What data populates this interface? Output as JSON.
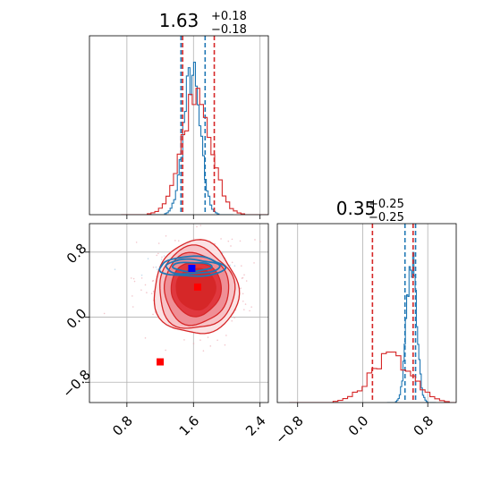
{
  "chart_data": {
    "type": "corner",
    "grid": true,
    "colors": {
      "series_a": "#1f77b4",
      "series_b": "#d62728",
      "marker_a": "#0000ff",
      "marker_b": "#ff0000"
    },
    "panels": [
      {
        "id": "hist_x",
        "type": "histogram",
        "title": {
          "value": "1.63",
          "plus": "+0.18",
          "minus": "−0.18"
        },
        "xlim": [
          0.35,
          2.5
        ],
        "xticks": [
          0.8,
          1.6,
          2.4
        ],
        "series": [
          {
            "color": "#1f77b4",
            "quantiles": [
              1.45,
              1.74
            ],
            "peak": 1.58,
            "sigma": 0.1,
            "peak_height": 0.78
          },
          {
            "color": "#d62728",
            "quantiles": [
              1.47,
              1.85
            ],
            "peak": 1.63,
            "sigma": 0.18,
            "peak_height": 0.63
          }
        ]
      },
      {
        "id": "scatter_xy",
        "type": "contour",
        "xlim": [
          0.35,
          2.5
        ],
        "ylim": [
          -1.05,
          1.15
        ],
        "xticks": [
          0.8,
          1.6,
          2.4
        ],
        "yticks": [
          0.8,
          0.0,
          -0.8
        ],
        "xticklabels": [
          "0.8",
          "1.6",
          "2.4"
        ],
        "yticklabels": [
          "0.8",
          "0.0",
          "−0.8"
        ],
        "series": [
          {
            "color": "#d62728",
            "center": [
              1.63,
              0.35
            ],
            "spread": [
              0.45,
              0.48
            ],
            "fill": true
          },
          {
            "color": "#1f77b4",
            "center": [
              1.58,
              0.62
            ],
            "spread": [
              0.38,
              0.12
            ],
            "fill": false
          }
        ],
        "markers": [
          {
            "color": "#0000ff",
            "x": 1.58,
            "y": 0.6
          },
          {
            "color": "#ff0000",
            "x": 1.65,
            "y": 0.37
          },
          {
            "color": "#ff0000",
            "x": 1.2,
            "y": -0.55
          }
        ]
      },
      {
        "id": "hist_y",
        "type": "histogram",
        "title": {
          "value": "0.35",
          "plus": "+0.25",
          "minus": "−0.25"
        },
        "xlim": [
          -1.05,
          1.15
        ],
        "xticks": [
          -0.8,
          0.0,
          0.8
        ],
        "xticklabels": [
          "−0.8",
          "0.0",
          "0.8"
        ],
        "series": [
          {
            "color": "#1f77b4",
            "quantiles": [
              0.52,
              0.65
            ],
            "peak": 0.6,
            "sigma": 0.06,
            "peak_height": 0.8
          },
          {
            "color": "#d62728",
            "quantiles": [
              0.12,
              0.62
            ],
            "peak": 0.35,
            "sigma": 0.25,
            "peak_height": 0.25
          }
        ]
      }
    ]
  }
}
